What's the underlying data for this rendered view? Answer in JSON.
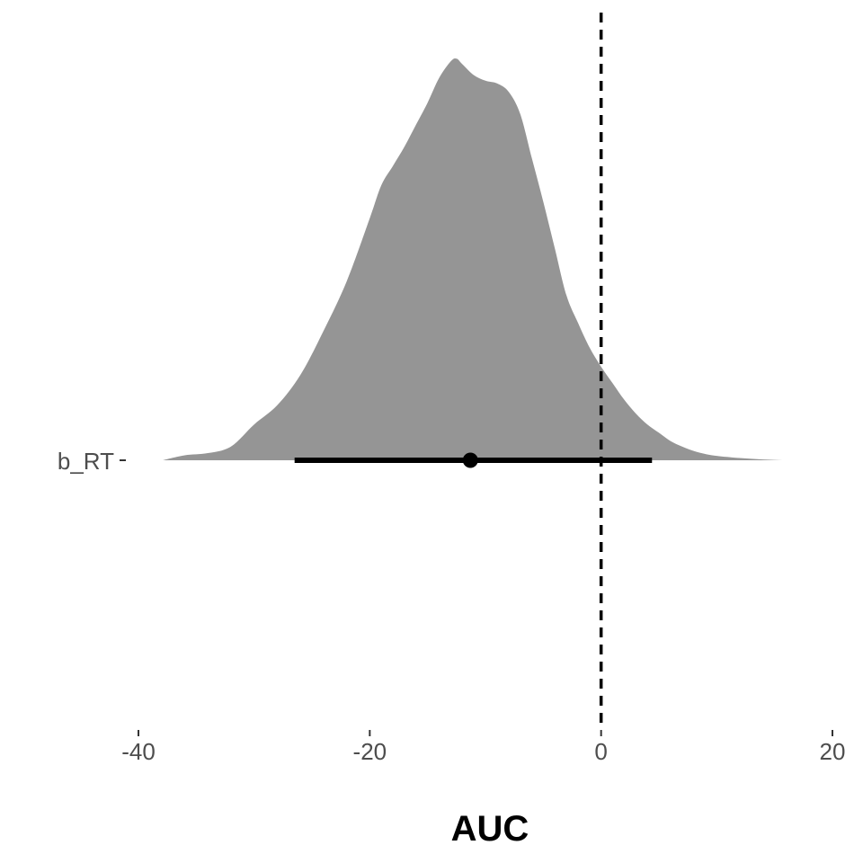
{
  "chart_data": {
    "type": "density",
    "xlabel": "AUC",
    "ylabel": "",
    "xlim": [
      -40,
      20
    ],
    "xticks": [
      {
        "value": -40,
        "label": "-40"
      },
      {
        "value": -20,
        "label": "-20"
      },
      {
        "value": 0,
        "label": "0"
      },
      {
        "value": 20,
        "label": "20"
      }
    ],
    "categories": [
      "b_RT"
    ],
    "reference_line": {
      "x": 0,
      "style": "dashed",
      "color": "#000000"
    },
    "series": [
      {
        "category": "b_RT",
        "fill_color": "#959595",
        "point_estimate": -11.3,
        "interval": [
          -26.5,
          4.4
        ],
        "density": {
          "x": [
            -37.9,
            -36,
            -34,
            -32,
            -30,
            -28,
            -26,
            -24,
            -22,
            -20,
            -19,
            -18,
            -17,
            -16,
            -15,
            -14,
            -13,
            -12.5,
            -12,
            -11,
            -10,
            -9,
            -8,
            -7,
            -6,
            -5,
            -4,
            -3,
            -2,
            -1,
            0,
            1,
            2,
            3,
            4,
            5,
            6,
            7,
            8,
            9,
            10,
            12,
            14,
            16,
            19.1
          ],
          "y": [
            0.0,
            0.018,
            0.026,
            0.05,
            0.13,
            0.2,
            0.31,
            0.47,
            0.65,
            0.88,
            1.0,
            1.07,
            1.14,
            1.22,
            1.3,
            1.39,
            1.45,
            1.46,
            1.44,
            1.4,
            1.38,
            1.37,
            1.34,
            1.26,
            1.1,
            0.94,
            0.77,
            0.6,
            0.5,
            0.41,
            0.34,
            0.28,
            0.22,
            0.17,
            0.13,
            0.1,
            0.07,
            0.05,
            0.034,
            0.023,
            0.016,
            0.008,
            0.003,
            0.0,
            0.0
          ]
        }
      }
    ]
  }
}
